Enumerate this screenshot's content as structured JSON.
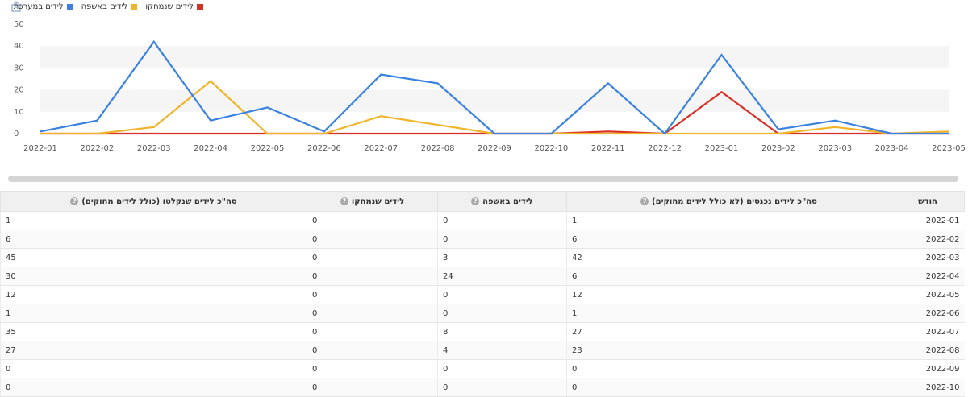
{
  "legend": [
    {
      "label": "לידים במערכת",
      "color": "#3b82e0"
    },
    {
      "label": "לידים באשפה",
      "color": "#f0b429"
    },
    {
      "label": "לידים שנמחקו",
      "color": "#d93025"
    }
  ],
  "chart_data": {
    "type": "line",
    "categories": [
      "2022-01",
      "2022-02",
      "2022-03",
      "2022-04",
      "2022-05",
      "2022-06",
      "2022-07",
      "2022-08",
      "2022-09",
      "2022-10",
      "2022-11",
      "2022-12",
      "2023-01",
      "2023-02",
      "2023-03",
      "2023-04",
      "2023-05"
    ],
    "yticks": [
      0,
      10,
      20,
      30,
      40,
      50
    ],
    "ylim": [
      0,
      50
    ],
    "grid": true,
    "series": [
      {
        "name": "לידים במערכת",
        "color": "#3b82e0",
        "values": [
          1,
          6,
          42,
          6,
          12,
          1,
          27,
          23,
          0,
          0,
          23,
          0,
          36,
          2,
          6,
          0,
          0
        ]
      },
      {
        "name": "לידים באשפה",
        "color": "#f0b429",
        "values": [
          0,
          0,
          3,
          24,
          0,
          0,
          8,
          4,
          0,
          0,
          0,
          0,
          0,
          0,
          3,
          0,
          1
        ]
      },
      {
        "name": "לידים שנמחקו",
        "color": "#d93025",
        "values": [
          0,
          0,
          0,
          0,
          0,
          0,
          0,
          0,
          0,
          0,
          1,
          0,
          19,
          0,
          0,
          0,
          0
        ]
      }
    ]
  },
  "table": {
    "headers": {
      "month": "חודש",
      "entered": "סה\"כ לידים נכנסים (לא כולל לידים מחוקים)",
      "trash": "לידים באשפה",
      "deleted": "לידים שנמחקו",
      "total": "סה\"כ לידים שנקלטו (כולל לידים מחוקים)"
    },
    "help_glyph": "?",
    "rows": [
      {
        "month": "2022-01",
        "entered": "1",
        "trash": "0",
        "deleted": "0",
        "total": "1"
      },
      {
        "month": "2022-02",
        "entered": "6",
        "trash": "0",
        "deleted": "0",
        "total": "6"
      },
      {
        "month": "2022-03",
        "entered": "42",
        "trash": "3",
        "deleted": "0",
        "total": "45"
      },
      {
        "month": "2022-04",
        "entered": "6",
        "trash": "24",
        "deleted": "0",
        "total": "30"
      },
      {
        "month": "2022-05",
        "entered": "12",
        "trash": "0",
        "deleted": "0",
        "total": "12"
      },
      {
        "month": "2022-06",
        "entered": "1",
        "trash": "0",
        "deleted": "0",
        "total": "1"
      },
      {
        "month": "2022-07",
        "entered": "27",
        "trash": "8",
        "deleted": "0",
        "total": "35"
      },
      {
        "month": "2022-08",
        "entered": "23",
        "trash": "4",
        "deleted": "0",
        "total": "27"
      },
      {
        "month": "2022-09",
        "entered": "0",
        "trash": "0",
        "deleted": "0",
        "total": "0"
      },
      {
        "month": "2022-10",
        "entered": "0",
        "trash": "0",
        "deleted": "0",
        "total": "0"
      }
    ]
  }
}
